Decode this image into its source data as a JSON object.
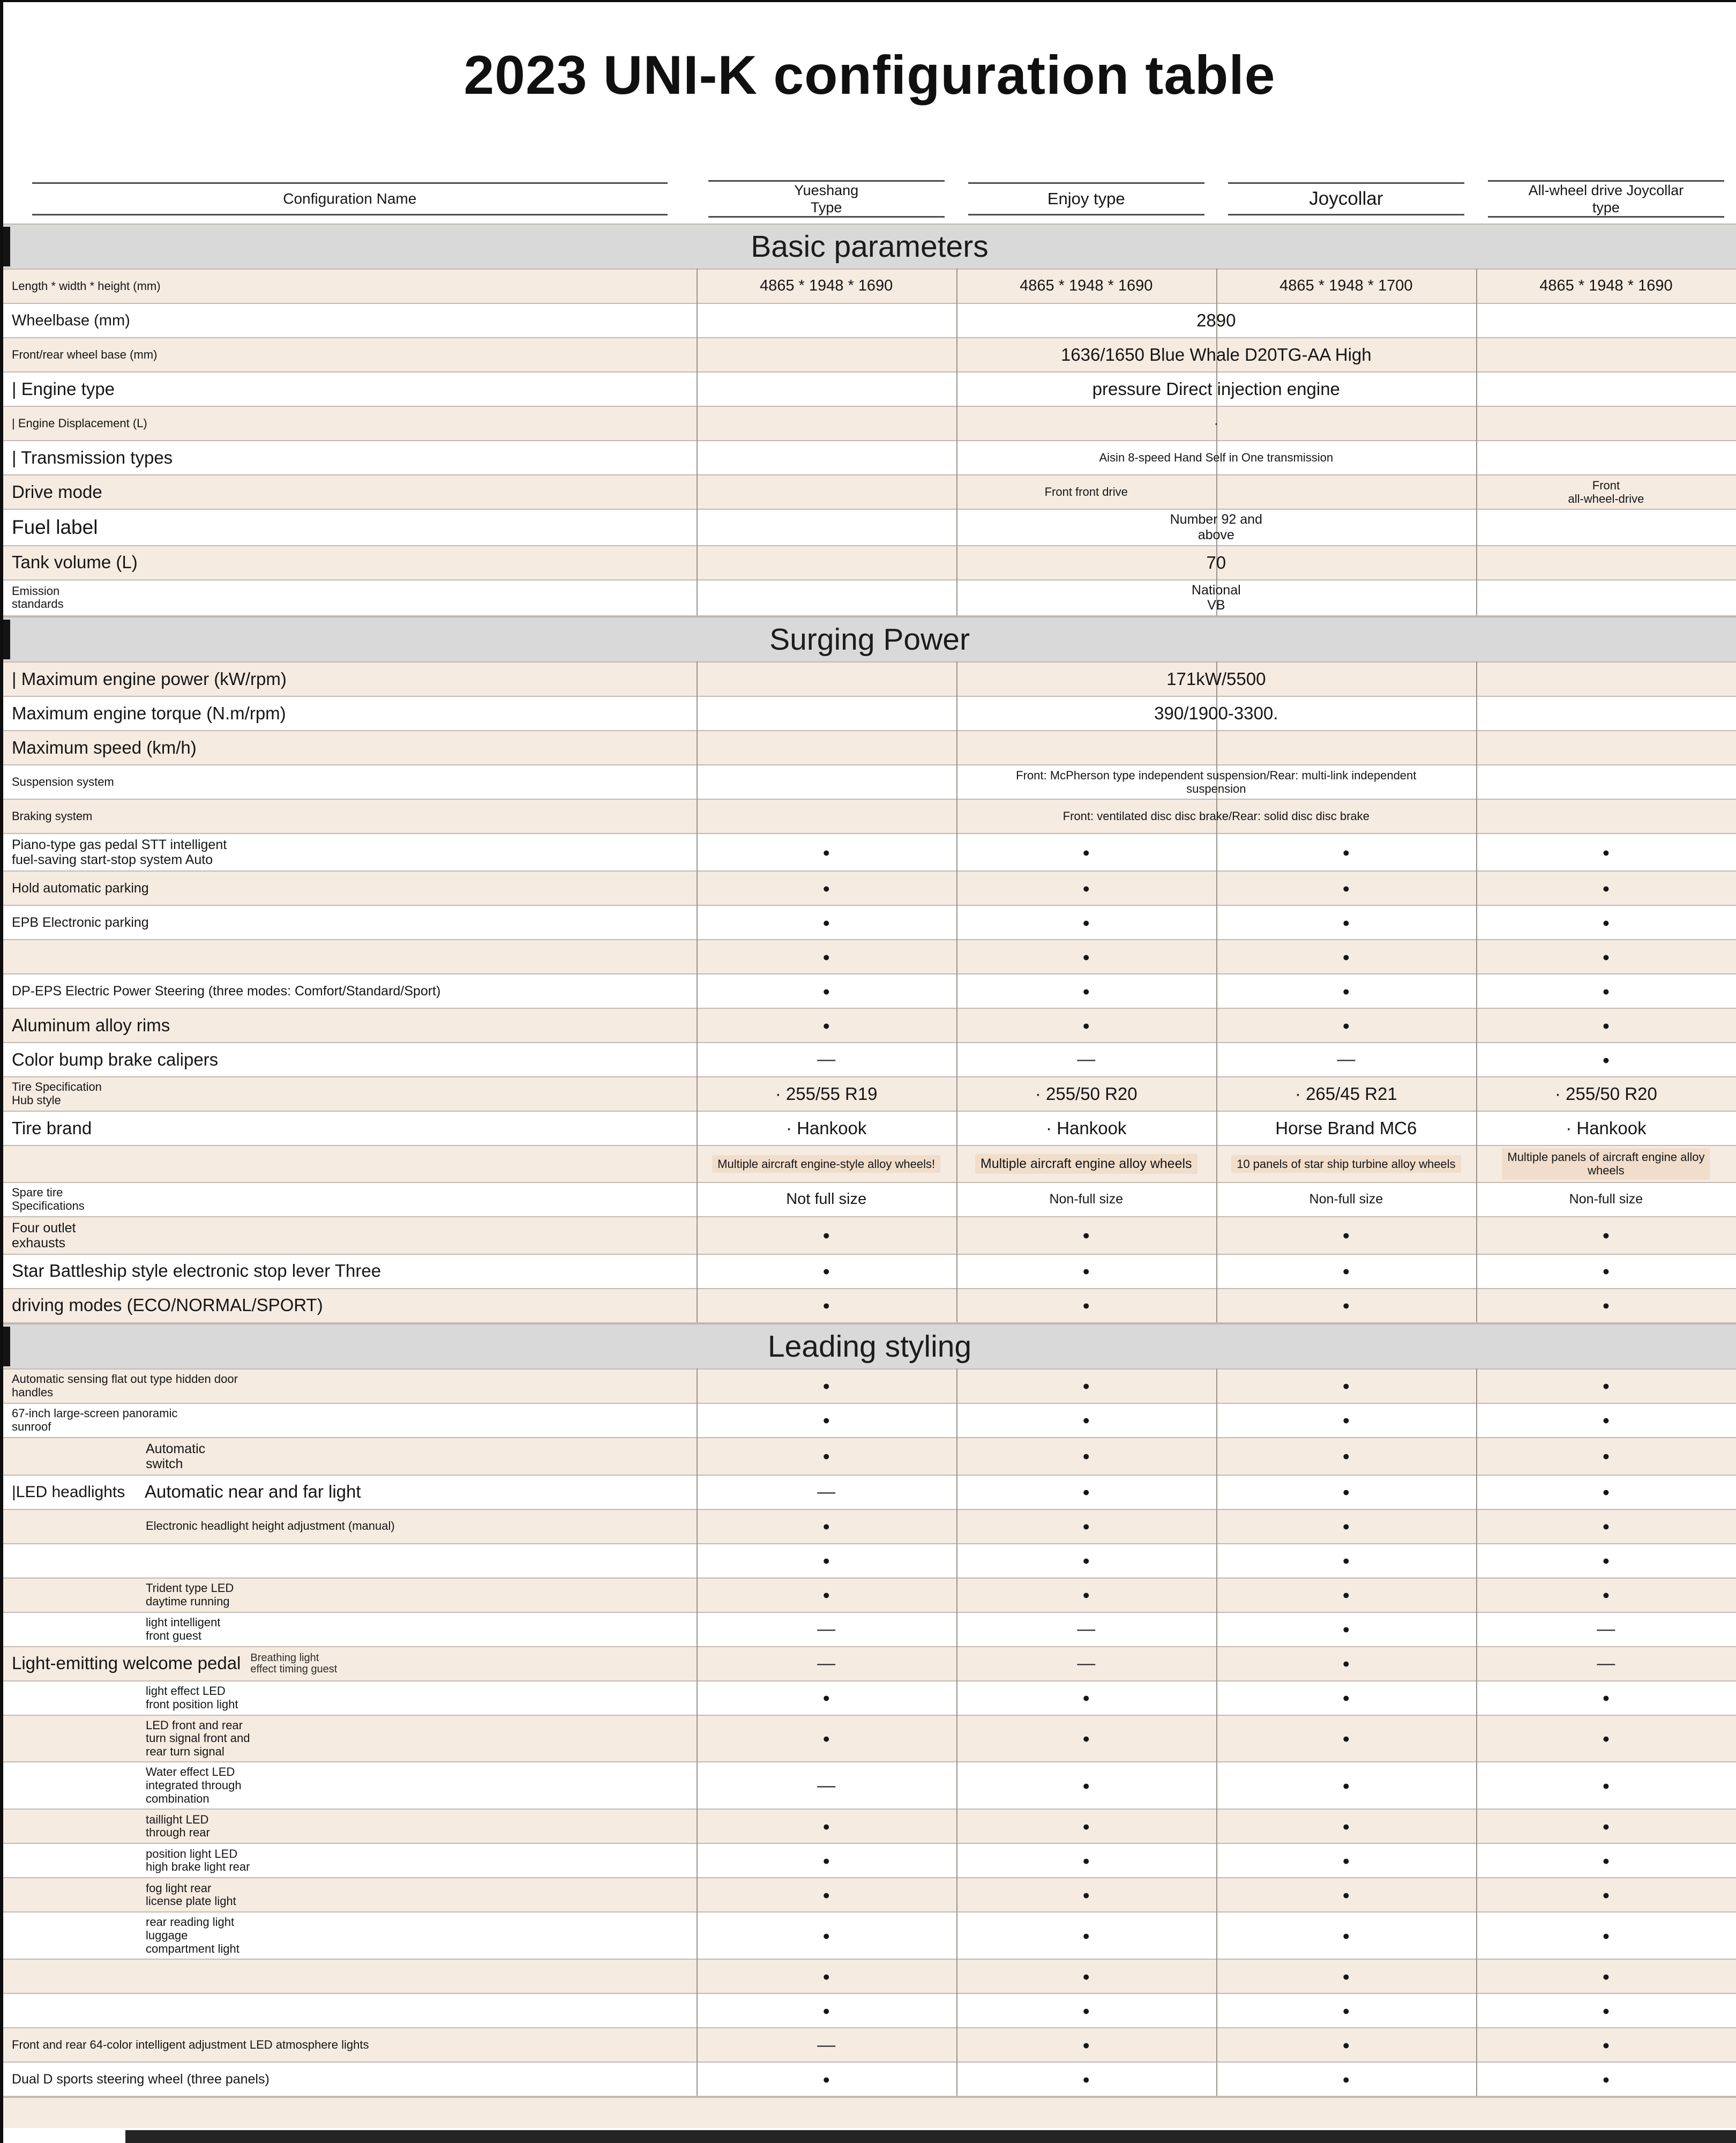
{
  "page": {
    "title": "2023 UNI-K configuration table"
  },
  "colors": {
    "stripe": "#f6ebe1",
    "bar": "#d9d9d9",
    "ink": "#161616"
  },
  "table": {
    "corner_header": "Configuration Name",
    "columns": [
      "Yueshang\nType",
      "Enjoy type",
      "Joycollar",
      "All-wheel drive Joycollar\ntype"
    ],
    "glyphs": {
      "included": "●",
      "absent": "—"
    },
    "sections": [
      {
        "title": "Basic parameters",
        "rows": [
          {
            "label": "Length * width * height (mm)",
            "ls": "xxs",
            "cells": [
              {
                "t": "4865 * 1948 * 1690",
                "size": "sm"
              },
              {
                "t": "4865 * 1948 * 1690",
                "size": "sm"
              },
              {
                "t": "4865 * 1948 * 1700",
                "size": "sm"
              },
              {
                "t": "4865 * 1948 * 1690",
                "size": "sm"
              }
            ]
          },
          {
            "label": "Wheelbase (mm)",
            "ls": "sm",
            "cells": [
              {
                "t": "2890",
                "span": 4,
                "size": "md"
              }
            ]
          },
          {
            "label": "Front/rear wheel base (mm)",
            "ls": "xxs",
            "cells": [
              {
                "t": "1636/1650 Blue Whale D20TG-AA High",
                "span": 4,
                "size": "md"
              }
            ]
          },
          {
            "label": "| Engine type",
            "ls": "md",
            "cells": [
              {
                "t": "pressure Direct injection engine",
                "span": 4,
                "size": "md"
              }
            ]
          },
          {
            "label": "| Engine Displacement (L)",
            "ls": "xxs",
            "cells": [
              {
                "t": "·",
                "span": 4,
                "size": "xs"
              }
            ]
          },
          {
            "label": "| Transmission types",
            "ls": "md",
            "cells": [
              {
                "t": "Aisin 8-speed Hand Self in One transmission",
                "span": 4,
                "size": "xxs"
              }
            ]
          },
          {
            "label": "Drive mode",
            "ls": "md",
            "cells": [
              {
                "t": "Front front drive",
                "span": 3,
                "size": "xxs"
              },
              {
                "t": "Front\nall-wheel-drive",
                "size": "xxs"
              }
            ]
          },
          {
            "label": "Fuel label",
            "ls": "lg",
            "cells": [
              {
                "t": "Number 92 and\nabove",
                "span": 4,
                "size": "xs"
              }
            ]
          },
          {
            "label": "Tank volume (L)",
            "ls": "md",
            "cells": [
              {
                "t": "70",
                "span": 4,
                "size": "md"
              }
            ]
          },
          {
            "label": "Emission\nstandards",
            "ls": "xxs",
            "cells": [
              {
                "t": "National\nVB",
                "span": 4,
                "size": "xs"
              }
            ]
          }
        ]
      },
      {
        "title": "Surging Power",
        "rows": [
          {
            "label": "| Maximum engine power (kW/rpm)",
            "ls": "md",
            "cells": [
              {
                "t": "171kW/5500",
                "span": 4,
                "size": "md"
              }
            ]
          },
          {
            "label": "Maximum engine torque (N.m/rpm)",
            "ls": "md",
            "cells": [
              {
                "t": "390/1900-3300.",
                "span": 4,
                "size": "md"
              }
            ]
          },
          {
            "label": "Maximum speed (km/h)",
            "ls": "md",
            "cells": [
              {
                "t": "",
                "span": 4,
                "size": "sm"
              }
            ]
          },
          {
            "label": "Suspension system",
            "ls": "xxs",
            "cells": [
              {
                "t": "Front: McPherson type independent suspension/Rear: multi-link independent\nsuspension",
                "span": 4,
                "size": "xxs"
              }
            ]
          },
          {
            "label": "Braking system",
            "ls": "xxs",
            "cells": [
              {
                "t": "Front: ventilated disc disc brake/Rear: solid disc disc brake",
                "span": 4,
                "size": "xxs"
              }
            ]
          },
          {
            "label": "Piano-type gas pedal STT intelligent\nfuel-saving start-stop system Auto",
            "ls": "xs",
            "cells": [
              {
                "t": "●"
              },
              {
                "t": "●"
              },
              {
                "t": "●"
              },
              {
                "t": "●"
              }
            ]
          },
          {
            "label": "Hold automatic parking",
            "ls": "xs",
            "cells": [
              {
                "t": "●"
              },
              {
                "t": "●"
              },
              {
                "t": "●"
              },
              {
                "t": "●"
              }
            ]
          },
          {
            "label": "EPB Electronic parking",
            "ls": "xs",
            "cells": [
              {
                "t": "●"
              },
              {
                "t": "●"
              },
              {
                "t": "●"
              },
              {
                "t": "●"
              }
            ]
          },
          {
            "label": "",
            "ls": "xs",
            "cells": [
              {
                "t": "●"
              },
              {
                "t": "●"
              },
              {
                "t": "●"
              },
              {
                "t": "●"
              }
            ]
          },
          {
            "label": "DP-EPS Electric Power Steering (three modes: Comfort/Standard/Sport)",
            "ls": "xs",
            "cells": [
              {
                "t": "●"
              },
              {
                "t": "●"
              },
              {
                "t": "●"
              },
              {
                "t": "●"
              }
            ]
          },
          {
            "label": "Aluminum alloy rims",
            "ls": "md",
            "cells": [
              {
                "t": "●"
              },
              {
                "t": "●"
              },
              {
                "t": "●"
              },
              {
                "t": "●"
              }
            ]
          },
          {
            "label": "Color bump brake calipers",
            "ls": "md",
            "cells": [
              {
                "t": "—"
              },
              {
                "t": "—"
              },
              {
                "t": "—"
              },
              {
                "t": "●"
              }
            ]
          },
          {
            "label": "Tire Specification\nHub style",
            "ls": "xxs",
            "cells": [
              {
                "t": "· 255/55 R19",
                "size": "md"
              },
              {
                "t": "· 255/50 R20",
                "size": "md"
              },
              {
                "t": "· 265/45 R21",
                "size": "md"
              },
              {
                "t": "· 255/50 R20",
                "size": "md"
              }
            ]
          },
          {
            "label": "Tire brand",
            "ls": "md",
            "cells": [
              {
                "t": "· Hankook",
                "size": "md"
              },
              {
                "t": "· Hankook",
                "size": "md"
              },
              {
                "t": "Horse Brand MC6",
                "size": "md"
              },
              {
                "t": "· Hankook",
                "size": "md"
              }
            ]
          },
          {
            "label": "",
            "ls": "xs",
            "cells": [
              {
                "t": "Multiple aircraft engine-style alloy wheels!",
                "size": "xxs",
                "hl": true
              },
              {
                "t": "Multiple aircraft engine alloy wheels",
                "size": "xs",
                "hl": true
              },
              {
                "t": "10 panels of star ship turbine alloy wheels",
                "size": "xxs",
                "hl": true
              },
              {
                "t": "Multiple panels of aircraft engine alloy\nwheels",
                "size": "xxs",
                "hl": true
              }
            ]
          },
          {
            "label": "Spare tire\nSpecifications",
            "ls": "xxs",
            "cells": [
              {
                "t": "Not full size",
                "size": "sm"
              },
              {
                "t": "Non-full size",
                "size": "xs"
              },
              {
                "t": "Non-full size",
                "size": "xs"
              },
              {
                "t": "Non-full size",
                "size": "xs"
              }
            ]
          },
          {
            "label": "Four outlet\nexhausts",
            "ls": "xs",
            "cells": [
              {
                "t": "●"
              },
              {
                "t": "●"
              },
              {
                "t": "●"
              },
              {
                "t": "●"
              }
            ]
          },
          {
            "label": "Star Battleship style electronic stop lever Three",
            "ls": "md",
            "cells": [
              {
                "t": "●"
              },
              {
                "t": "●"
              },
              {
                "t": "●"
              },
              {
                "t": "●"
              }
            ]
          },
          {
            "label": "driving modes (ECO/NORMAL/SPORT)",
            "ls": "md",
            "cells": [
              {
                "t": "●"
              },
              {
                "t": "●"
              },
              {
                "t": "●"
              },
              {
                "t": "●"
              }
            ]
          }
        ]
      },
      {
        "title": "Leading styling",
        "rows": [
          {
            "label": "Automatic sensing flat out type hidden door\nhandles",
            "ls": "xxs",
            "cells": [
              {
                "t": "●"
              },
              {
                "t": "●"
              },
              {
                "t": "●"
              },
              {
                "t": "●"
              }
            ]
          },
          {
            "label": "67-inch large-screen panoramic\nsunroof",
            "ls": "xxs",
            "cells": [
              {
                "t": "●"
              },
              {
                "t": "●"
              },
              {
                "t": "●"
              },
              {
                "t": "●"
              }
            ]
          },
          {
            "label": "Automatic\nswitch",
            "ls": "xs",
            "indent": true,
            "cells": [
              {
                "t": "●"
              },
              {
                "t": "●"
              },
              {
                "t": "●"
              },
              {
                "t": "●"
              }
            ]
          },
          {
            "label": "Automatic near and far light",
            "ls": "md",
            "indent": true,
            "prefix": "|LED headlights",
            "cells": [
              {
                "t": "—"
              },
              {
                "t": "●"
              },
              {
                "t": "●"
              },
              {
                "t": "●"
              }
            ]
          },
          {
            "label": "Electronic headlight height adjustment (manual)",
            "ls": "xxs",
            "indent": true,
            "cells": [
              {
                "t": "●"
              },
              {
                "t": "●"
              },
              {
                "t": "●"
              },
              {
                "t": "●"
              }
            ]
          },
          {
            "label": "",
            "ls": "xs",
            "cells": [
              {
                "t": "●"
              },
              {
                "t": "●"
              },
              {
                "t": "●"
              },
              {
                "t": "●"
              }
            ]
          },
          {
            "label": "Trident type LED\ndaytime running",
            "ls": "xxs",
            "indent": true,
            "cells": [
              {
                "t": "●"
              },
              {
                "t": "●"
              },
              {
                "t": "●"
              },
              {
                "t": "●"
              }
            ]
          },
          {
            "label": "light intelligent\nfront guest",
            "ls": "xxs",
            "indent": true,
            "cells": [
              {
                "t": "—"
              },
              {
                "t": "—"
              },
              {
                "t": "●"
              },
              {
                "t": "—"
              }
            ]
          },
          {
            "label": "Light-emitting welcome pedal",
            "ls": "md",
            "sub": "Breathing light\neffect timing guest",
            "cells": [
              {
                "t": "—"
              },
              {
                "t": "—"
              },
              {
                "t": "●"
              },
              {
                "t": "—"
              }
            ]
          },
          {
            "label": "light effect LED\nfront position light",
            "ls": "xxs",
            "indent": true,
            "cells": [
              {
                "t": "●"
              },
              {
                "t": "●"
              },
              {
                "t": "●"
              },
              {
                "t": "●"
              }
            ]
          },
          {
            "label": "LED front and rear\nturn signal front and\nrear turn signal",
            "ls": "xxs",
            "indent": true,
            "cells": [
              {
                "t": "●"
              },
              {
                "t": "●"
              },
              {
                "t": "●"
              },
              {
                "t": "●"
              }
            ]
          },
          {
            "label": "Water effect LED\nintegrated through\ncombination",
            "ls": "xxs",
            "indent": true,
            "cells": [
              {
                "t": "—"
              },
              {
                "t": "●"
              },
              {
                "t": "●"
              },
              {
                "t": "●"
              }
            ]
          },
          {
            "label": "taillight LED\nthrough rear",
            "ls": "xxs",
            "indent": true,
            "cells": [
              {
                "t": "●"
              },
              {
                "t": "●"
              },
              {
                "t": "●"
              },
              {
                "t": "●"
              }
            ]
          },
          {
            "label": "position light LED\nhigh brake light rear",
            "ls": "xxs",
            "indent": true,
            "cells": [
              {
                "t": "●"
              },
              {
                "t": "●"
              },
              {
                "t": "●"
              },
              {
                "t": "●"
              }
            ]
          },
          {
            "label": "fog light rear\nlicense plate light",
            "ls": "xxs",
            "indent": true,
            "cells": [
              {
                "t": "●"
              },
              {
                "t": "●"
              },
              {
                "t": "●"
              },
              {
                "t": "●"
              }
            ]
          },
          {
            "label": "rear reading light\nluggage\ncompartment light",
            "ls": "xxs",
            "indent": true,
            "cells": [
              {
                "t": "●"
              },
              {
                "t": "●"
              },
              {
                "t": "●"
              },
              {
                "t": "●"
              }
            ]
          },
          {
            "label": "",
            "ls": "xs",
            "cells": [
              {
                "t": "●"
              },
              {
                "t": "●"
              },
              {
                "t": "●"
              },
              {
                "t": "●"
              }
            ]
          },
          {
            "label": "",
            "ls": "xs",
            "cells": [
              {
                "t": "●"
              },
              {
                "t": "●"
              },
              {
                "t": "●"
              },
              {
                "t": "●"
              }
            ]
          },
          {
            "label": "Front and rear 64-color intelligent adjustment LED atmosphere lights",
            "ls": "xxs",
            "cells": [
              {
                "t": "—"
              },
              {
                "t": "●"
              },
              {
                "t": "●"
              },
              {
                "t": "●"
              }
            ]
          },
          {
            "label": "Dual D sports steering wheel (three panels)",
            "ls": "xs",
            "cells": [
              {
                "t": "●"
              },
              {
                "t": "●"
              },
              {
                "t": "●"
              },
              {
                "t": "●"
              }
            ]
          }
        ]
      }
    ]
  }
}
